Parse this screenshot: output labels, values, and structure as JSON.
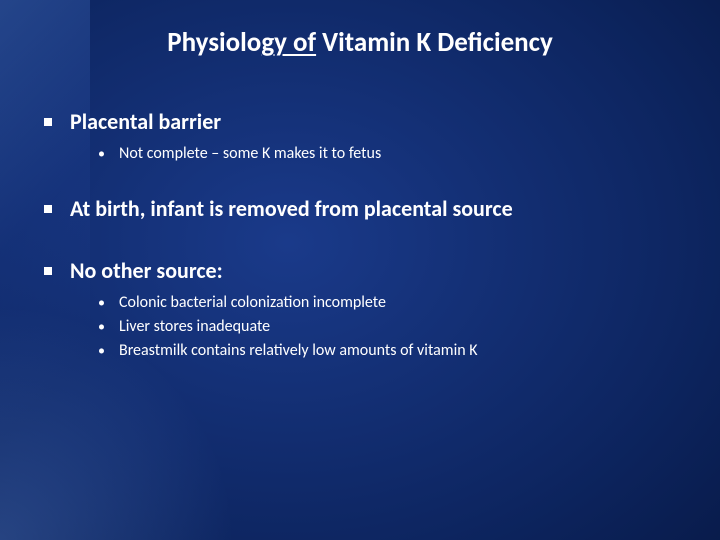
{
  "slide": {
    "title_prefix": "Physiolo",
    "title_underlined": "gy of",
    "title_suffix": " Vitamin K Deficiency",
    "colors": {
      "text": "#ffffff",
      "bg_center": "#1a3a8a",
      "bg_edge": "#020a28"
    },
    "typography": {
      "title_fontsize": 27,
      "l1_fontsize": 22,
      "l2_fontsize": 16,
      "font_family": "Calibri"
    },
    "bullets": [
      {
        "text": "Placental barrier",
        "sub": [
          "Not complete – some K makes it to fetus"
        ]
      },
      {
        "text": "At birth, infant is removed from placental source",
        "sub": []
      },
      {
        "text": "No other source:",
        "sub": [
          "Colonic bacterial colonization incomplete",
          "Liver stores inadequate",
          "Breastmilk contains relatively low amounts of vitamin K"
        ]
      }
    ]
  }
}
